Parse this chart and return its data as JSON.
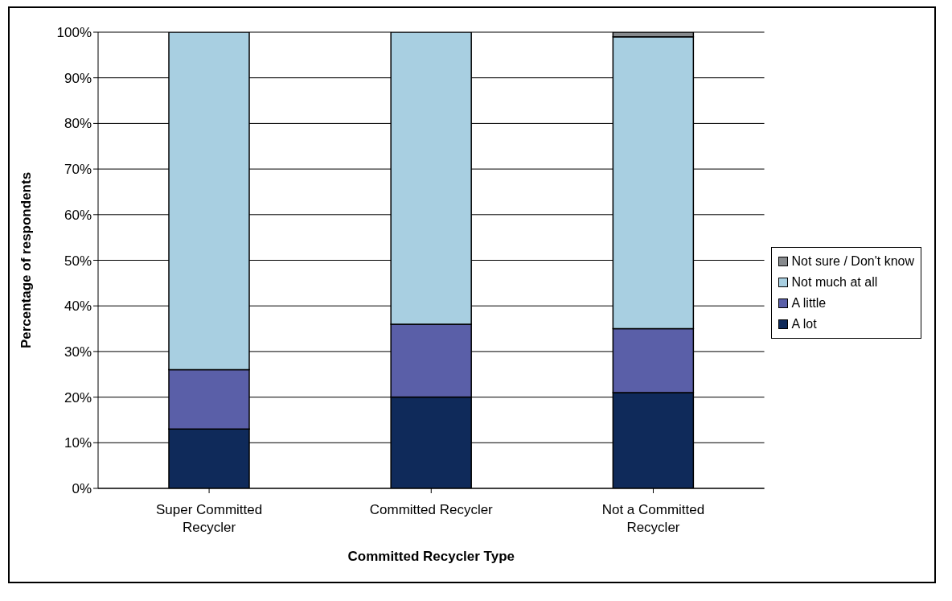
{
  "chart_data": {
    "type": "bar",
    "stacked": true,
    "xlabel": "Committed Recycler Type",
    "ylabel": "Percentage of respondents",
    "categories": [
      "Super Committed Recycler",
      "Committed Recycler",
      "Not a Committed Recycler"
    ],
    "series": [
      {
        "name": "A lot",
        "color": "#0f2a5a",
        "values": [
          13,
          20,
          21
        ]
      },
      {
        "name": "A little",
        "color": "#5a5fa8",
        "values": [
          13,
          16,
          14
        ]
      },
      {
        "name": "Not much at all",
        "color": "#a8cfe1",
        "values": [
          74,
          64,
          64
        ]
      },
      {
        "name": "Not sure / Don't know",
        "color": "#878a8d",
        "values": [
          0,
          0,
          1
        ]
      }
    ],
    "ylim": [
      0,
      100
    ],
    "yticks": [
      {
        "value": 0,
        "label": "0%"
      },
      {
        "value": 10,
        "label": "10%"
      },
      {
        "value": 20,
        "label": "20%"
      },
      {
        "value": 30,
        "label": "30%"
      },
      {
        "value": 40,
        "label": "40%"
      },
      {
        "value": 50,
        "label": "50%"
      },
      {
        "value": 60,
        "label": "60%"
      },
      {
        "value": 70,
        "label": "70%"
      },
      {
        "value": 80,
        "label": "80%"
      },
      {
        "value": 90,
        "label": "90%"
      },
      {
        "value": 100,
        "label": "100%"
      }
    ],
    "grid": "y",
    "legend": "right"
  }
}
